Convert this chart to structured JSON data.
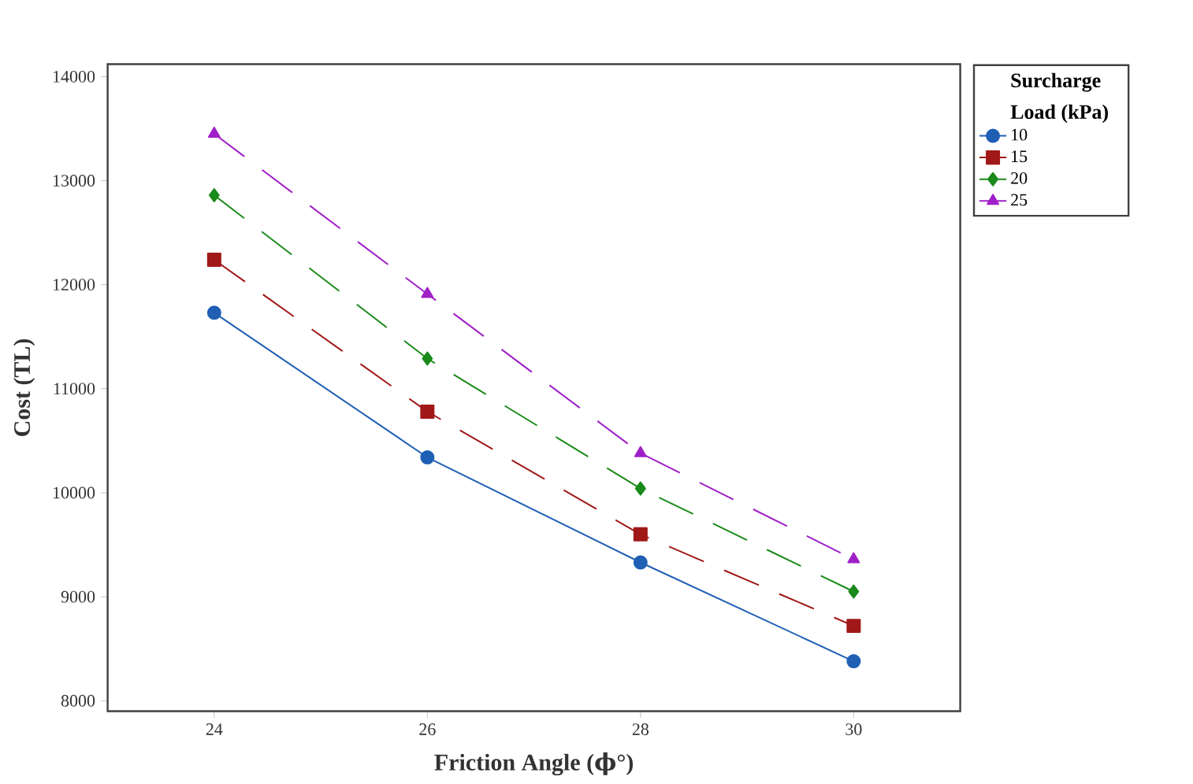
{
  "chart_data": {
    "type": "line",
    "xlabel": "Friction Angle (ϕ°)",
    "ylabel": "Cost (TL)",
    "legend_title": "Surcharge Load (kPa)",
    "x": [
      24,
      26,
      28,
      30
    ],
    "xlim": [
      23,
      31
    ],
    "xticks": [
      24,
      26,
      28,
      30
    ],
    "ylim": [
      7900,
      14120
    ],
    "yticks": [
      8000,
      9000,
      10000,
      11000,
      12000,
      13000,
      14000
    ],
    "legend": "top right",
    "grid": false,
    "series": [
      {
        "name": "10",
        "color": "#1f5fb4",
        "marker": "circle",
        "line_style": "solid",
        "values": [
          11730,
          10340,
          9330,
          8380
        ]
      },
      {
        "name": "15",
        "color": "#a01818",
        "marker": "square",
        "line_style": "dashed",
        "values": [
          12240,
          10780,
          9600,
          8720
        ]
      },
      {
        "name": "20",
        "color": "#1a8a1a",
        "marker": "diamond",
        "line_style": "dashed",
        "values": [
          12860,
          11290,
          10040,
          9050
        ]
      },
      {
        "name": "25",
        "color": "#a020c8",
        "marker": "triangle",
        "line_style": "dashed",
        "values": [
          13450,
          11910,
          10380,
          9360
        ]
      }
    ]
  }
}
